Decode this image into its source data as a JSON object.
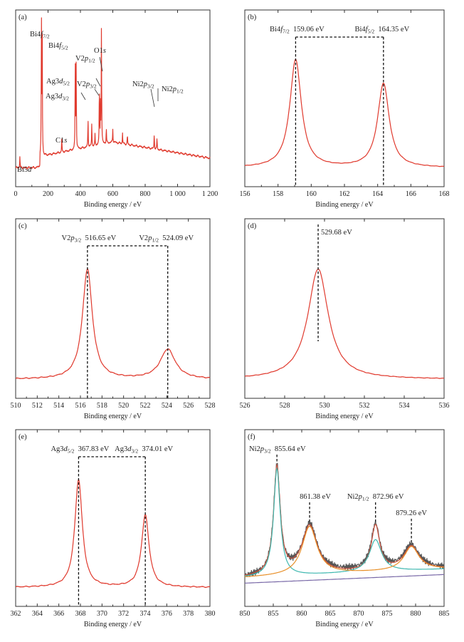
{
  "xlabel": "Binding energy / eV",
  "colors": {
    "curve": "#e03a2e",
    "fit_red": "#c8503c",
    "fit_orange": "#e8902a",
    "fit_teal": "#3fb8b0",
    "fit_purple": "#7a6aa8",
    "raw": "#555555",
    "dash": "#111111"
  },
  "chart_data": [
    {
      "panel": "(a)",
      "type": "line",
      "xlim": [
        0,
        1200
      ],
      "xticks": [
        0,
        200,
        400,
        600,
        800,
        1000,
        1200
      ],
      "xticklabels": [
        "0",
        "200",
        "400",
        "600",
        "800",
        "1 000",
        "1 200"
      ],
      "xlabel": "Binding energy / eV",
      "peaks": [
        [
          26,
          0.38
        ],
        [
          159,
          4.4
        ],
        [
          164,
          4.25
        ],
        [
          285,
          0.45
        ],
        [
          368,
          3.0
        ],
        [
          374,
          2.7
        ],
        [
          517,
          1.9
        ],
        [
          524,
          1.4
        ],
        [
          530,
          3.7
        ],
        [
          856,
          0.5
        ],
        [
          873,
          0.35
        ]
      ],
      "annotations": [
        {
          "id": "bi5d",
          "x": 26,
          "label": "Bi5",
          "italic": "d",
          "sub": ""
        },
        {
          "id": "bi4f72",
          "x": 159,
          "label": "Bi4",
          "italic": "f",
          "sub": "7/2"
        },
        {
          "id": "bi4f52",
          "x": 164,
          "label": "Bi4",
          "italic": "f",
          "sub": "5/2"
        },
        {
          "id": "c1s",
          "x": 285,
          "label": "C1",
          "italic": "s",
          "sub": ""
        },
        {
          "id": "ag3d52",
          "x": 368,
          "label": "Ag3",
          "italic": "d",
          "sub": "5/2"
        },
        {
          "id": "ag3d32",
          "x": 374,
          "label": "Ag3",
          "italic": "d",
          "sub": "3/2"
        },
        {
          "id": "v2p32",
          "x": 517,
          "label": "V2",
          "italic": "p",
          "sub": "3/2"
        },
        {
          "id": "v2p12",
          "x": 524,
          "label": "V2",
          "italic": "p",
          "sub": "1/2"
        },
        {
          "id": "o1s",
          "x": 530,
          "label": "O1",
          "italic": "s",
          "sub": ""
        },
        {
          "id": "ni2p32",
          "x": 856,
          "label": "Ni2",
          "italic": "p",
          "sub": "3/2"
        },
        {
          "id": "ni2p12",
          "x": 873,
          "label": "Ni2",
          "italic": "p",
          "sub": "1/2"
        }
      ]
    },
    {
      "panel": "(b)",
      "type": "line",
      "xlim": [
        156,
        168
      ],
      "xticks": [
        156,
        158,
        160,
        162,
        164,
        166,
        168
      ],
      "xticklabels": [
        "156",
        "158",
        "160",
        "162",
        "164",
        "166",
        "168"
      ],
      "xlabel": "Binding energy / eV",
      "peaks": [
        [
          159.06,
          1.0,
          0.42
        ],
        [
          164.35,
          0.78,
          0.42
        ]
      ],
      "annotations": [
        {
          "id": "b1",
          "label": "Bi4",
          "italic": "f",
          "sub": "7/2",
          "value": "159.06 eV",
          "x": 159.06
        },
        {
          "id": "b2",
          "label": "Bi4",
          "italic": "f",
          "sub": "5/2",
          "value": "164.35 eV",
          "x": 164.35
        }
      ]
    },
    {
      "panel": "(c)",
      "type": "line",
      "xlim": [
        510,
        528
      ],
      "xticks": [
        510,
        512,
        514,
        516,
        518,
        520,
        522,
        524,
        526,
        528
      ],
      "xticklabels": [
        "510",
        "512",
        "514",
        "516",
        "518",
        "520",
        "522",
        "524",
        "526",
        "528"
      ],
      "xlabel": "Binding energy / eV",
      "peaks": [
        [
          516.65,
          1.0,
          0.55
        ],
        [
          524.09,
          0.27,
          0.85
        ]
      ],
      "annotations": [
        {
          "id": "c1",
          "label": "V2",
          "italic": "p",
          "sub": "3/2",
          "value": "516.65 eV",
          "x": 516.65
        },
        {
          "id": "c2",
          "label": "V2",
          "italic": "p",
          "sub": "1/2",
          "value": "524.09 eV",
          "x": 524.09
        }
      ]
    },
    {
      "panel": "(d)",
      "type": "line",
      "xlim": [
        526,
        536
      ],
      "xticks": [
        526,
        528,
        530,
        532,
        534,
        536
      ],
      "xticklabels": [
        "526",
        "528",
        "530",
        "532",
        "534",
        "536"
      ],
      "xlabel": "Binding energy / eV",
      "peaks": [
        [
          529.68,
          1.0,
          0.62
        ]
      ],
      "annotations": [
        {
          "id": "d1",
          "label": "",
          "italic": "",
          "sub": "",
          "value": "529.68 eV",
          "x": 529.68
        }
      ]
    },
    {
      "panel": "(e)",
      "type": "line",
      "xlim": [
        362,
        380
      ],
      "xticks": [
        362,
        364,
        366,
        368,
        370,
        372,
        374,
        376,
        378,
        380
      ],
      "xticklabels": [
        "362",
        "364",
        "366",
        "368",
        "370",
        "372",
        "374",
        "376",
        "378",
        "380"
      ],
      "xlabel": "Binding energy / eV",
      "peaks": [
        [
          367.83,
          1.0,
          0.42
        ],
        [
          374.01,
          0.67,
          0.42
        ]
      ],
      "annotations": [
        {
          "id": "e1",
          "label": "Ag3",
          "italic": "d",
          "sub": "5/2",
          "value": "367.83 eV",
          "x": 367.83
        },
        {
          "id": "e2",
          "label": "Ag3",
          "italic": "d",
          "sub": "3/2",
          "value": "374.01 eV",
          "x": 374.01
        }
      ]
    },
    {
      "panel": "(f)",
      "type": "line",
      "xlim": [
        850,
        885
      ],
      "xticks": [
        850,
        855,
        860,
        865,
        870,
        875,
        880,
        885
      ],
      "xticklabels": [
        "850",
        "855",
        "860",
        "865",
        "870",
        "875",
        "880",
        "885"
      ],
      "xlabel": "Binding energy / eV",
      "peaks": [
        [
          855.64,
          1.0,
          0.7
        ],
        [
          861.38,
          0.45,
          1.6
        ],
        [
          872.96,
          0.42,
          0.9
        ],
        [
          879.26,
          0.22,
          1.6
        ]
      ],
      "annotations": [
        {
          "id": "f1",
          "label": "Ni2",
          "italic": "p",
          "sub": "3/2",
          "value": "855.64 eV",
          "x": 855.64
        },
        {
          "id": "f2",
          "label": "",
          "italic": "",
          "sub": "",
          "value": "861.38 eV",
          "x": 861.38
        },
        {
          "id": "f3",
          "label": "Ni2",
          "italic": "p",
          "sub": "1/2",
          "value": "872.96 eV",
          "x": 872.96
        },
        {
          "id": "f4",
          "label": "",
          "italic": "",
          "sub": "",
          "value": "879.26 eV",
          "x": 879.26
        }
      ]
    }
  ]
}
